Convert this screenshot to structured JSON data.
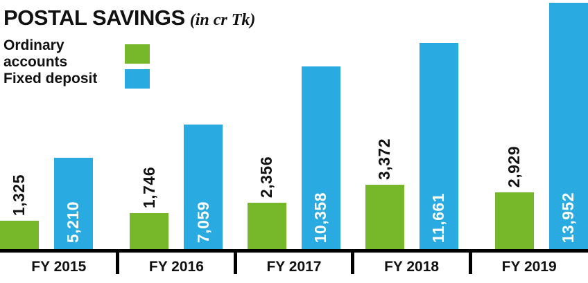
{
  "header": {
    "title": "POSTAL SAVINGS",
    "subtitle": "(in cr Tk)"
  },
  "legend": [
    {
      "label": "Ordinary accounts",
      "color": "#76b82a"
    },
    {
      "label": "Fixed deposit",
      "color": "#29abe2"
    }
  ],
  "chart_data": {
    "type": "bar",
    "title": "POSTAL SAVINGS (in cr Tk)",
    "categories": [
      "FY 2015",
      "FY 2016",
      "FY 2017",
      "FY 2018",
      "FY 2019"
    ],
    "series": [
      {
        "name": "Ordinary accounts",
        "color": "#76b82a",
        "values": [
          1325,
          1746,
          2356,
          3372,
          2929
        ],
        "labels": [
          "1,325",
          "1,746",
          "2,356",
          "3,372",
          "2,929"
        ],
        "label_position": "above-bar-rotated",
        "label_color": "#111111"
      },
      {
        "name": "Fixed deposit",
        "color": "#29abe2",
        "values": [
          5210,
          7059,
          10358,
          11661,
          13952
        ],
        "labels": [
          "5,210",
          "7,059",
          "10,358",
          "11,661",
          "13,952"
        ],
        "label_position": "inside-bar-bottom-rotated",
        "label_color": "#ffffff"
      }
    ],
    "ylim": [
      0,
      14100
    ],
    "grid": false,
    "legend_position": "top-left",
    "axis_color": "#000000"
  }
}
